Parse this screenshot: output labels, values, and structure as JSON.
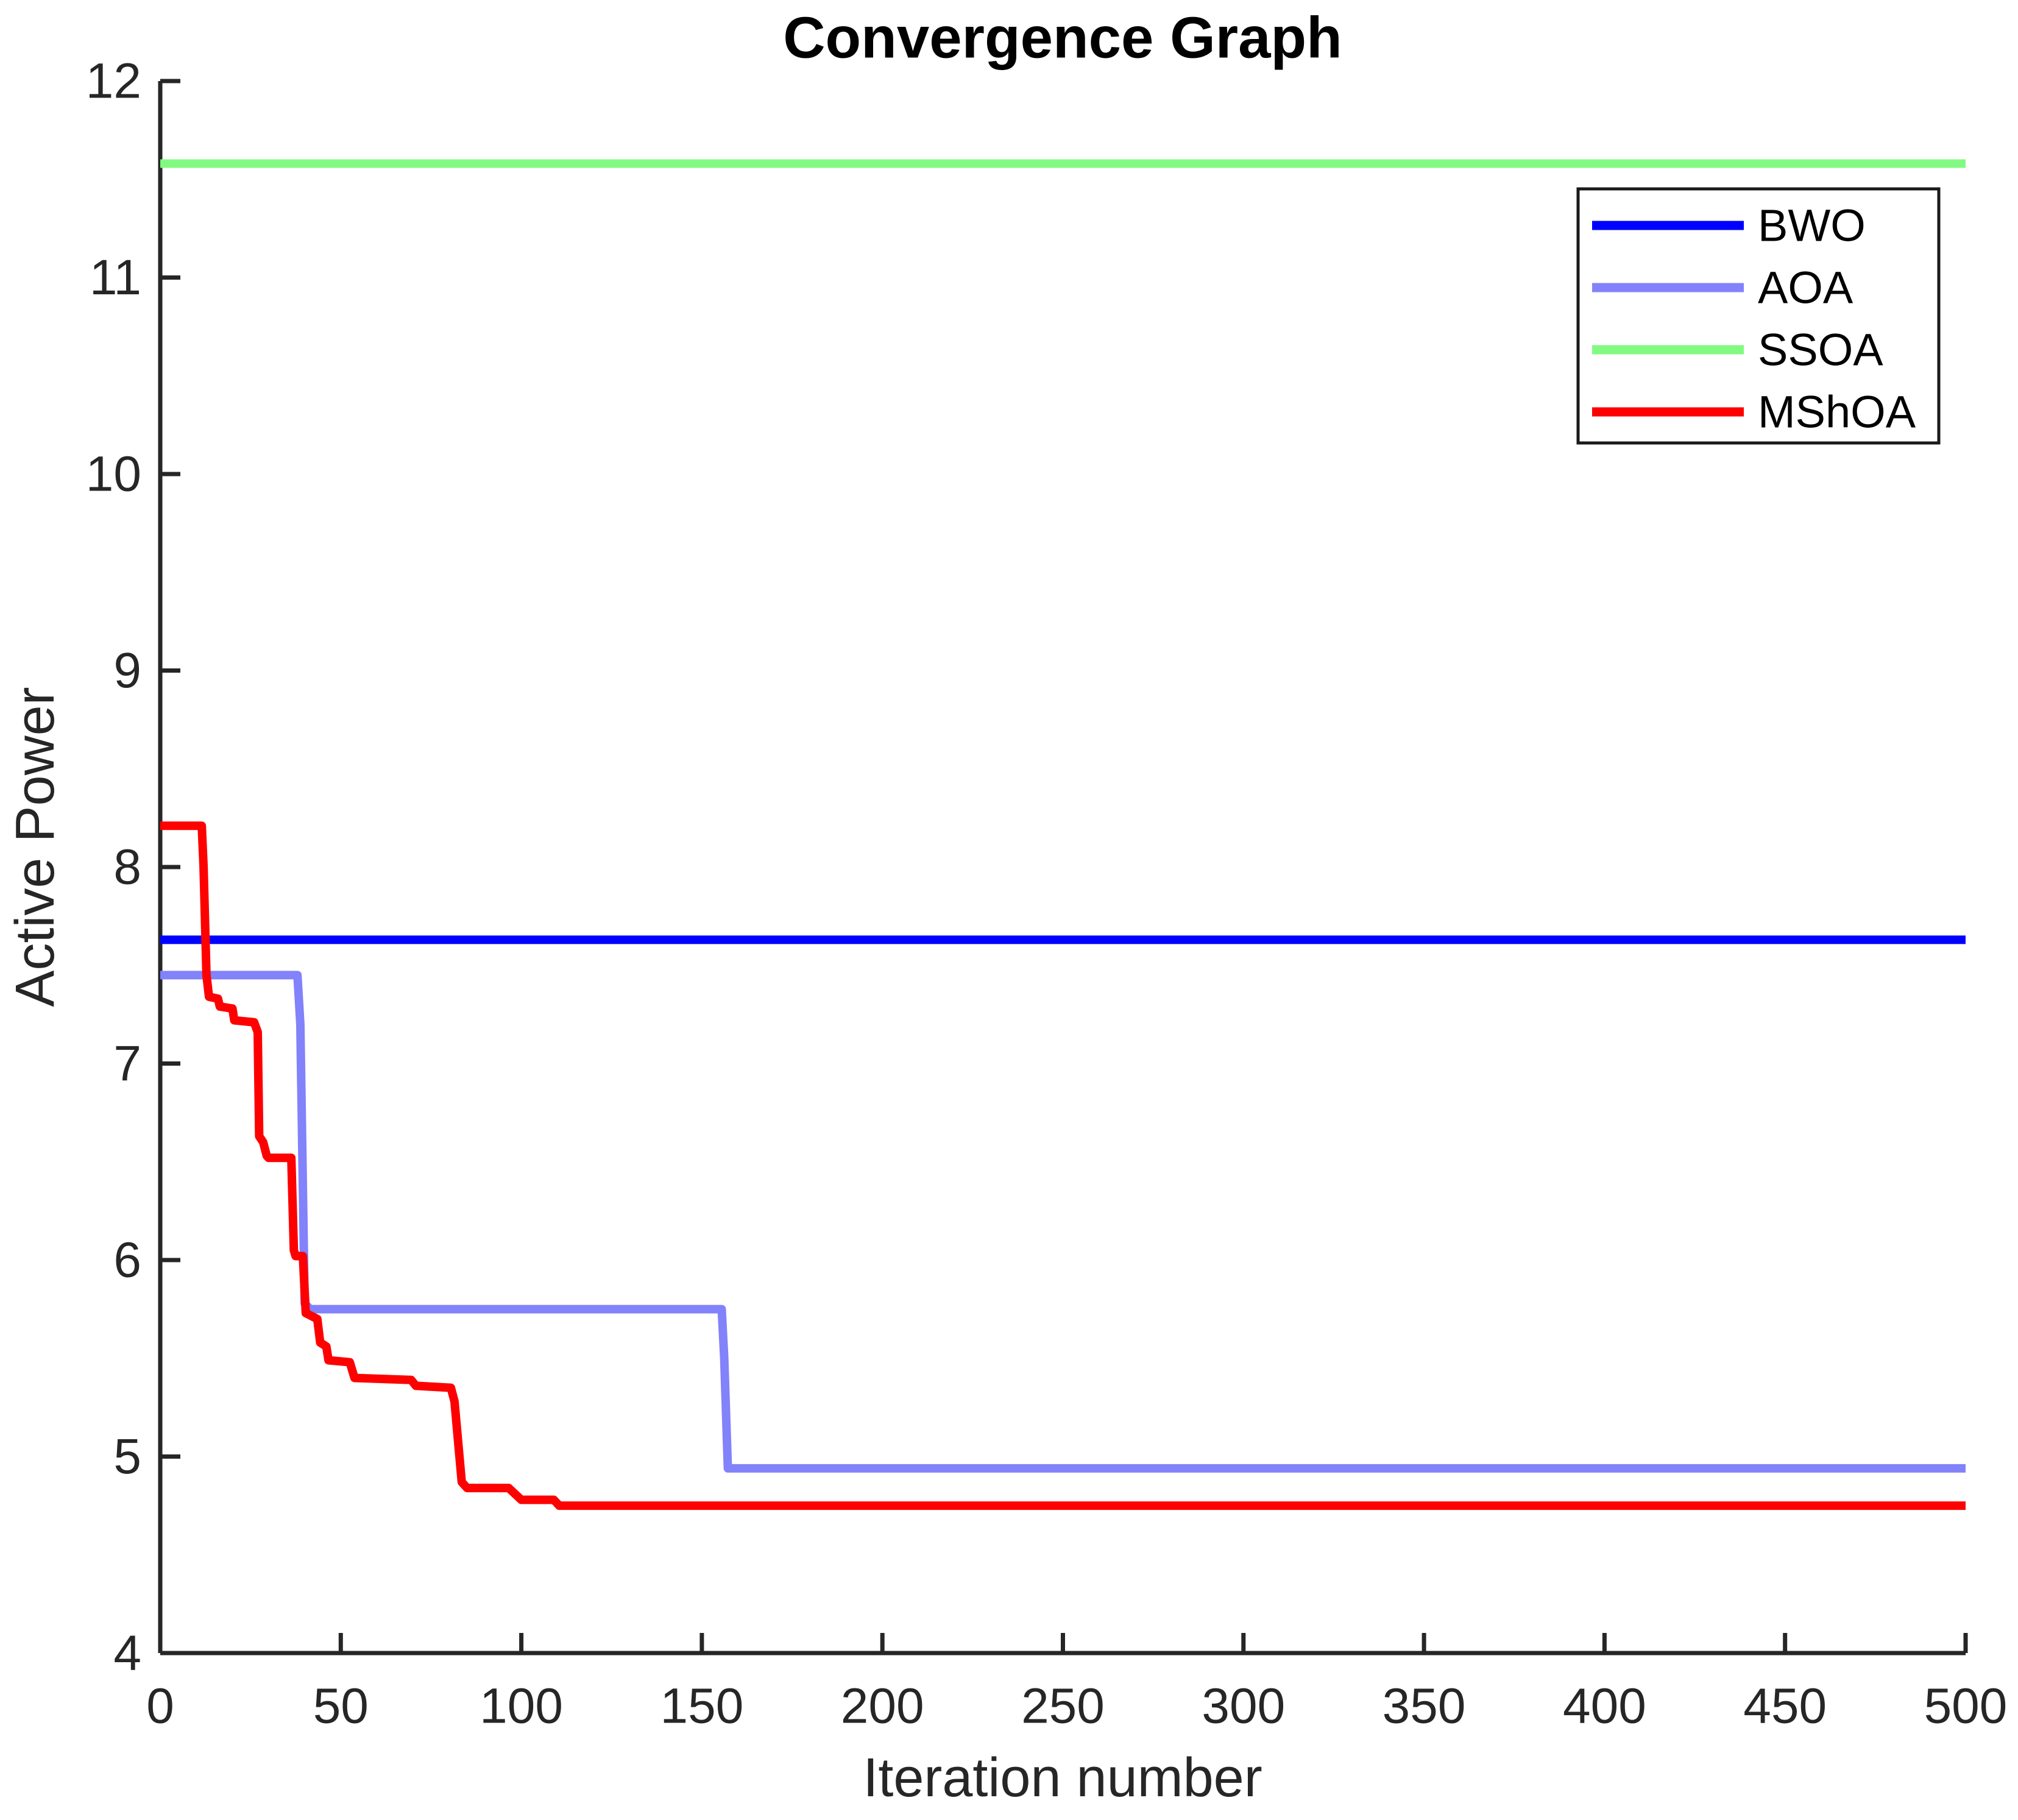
{
  "chart_data": {
    "type": "line",
    "title": "Convergence Graph",
    "xlabel": "Iteration number",
    "ylabel": "Active Power",
    "xlim": [
      0,
      500
    ],
    "ylim": [
      4,
      12
    ],
    "xticks": [
      0,
      50,
      100,
      150,
      200,
      250,
      300,
      350,
      400,
      450,
      500
    ],
    "yticks": [
      4,
      5,
      6,
      7,
      8,
      9,
      10,
      11,
      12
    ],
    "grid": false,
    "legend_position": "top-right",
    "axis_color": "#262626",
    "series": [
      {
        "name": "BWO",
        "color": "#0000FE",
        "points": [
          [
            0,
            7.63
          ],
          [
            500,
            7.63
          ]
        ]
      },
      {
        "name": "AOA",
        "color": "#8282FB",
        "points": [
          [
            0,
            7.45
          ],
          [
            38,
            7.45
          ],
          [
            38.8,
            7.2
          ],
          [
            40,
            5.78
          ],
          [
            41.5,
            5.75
          ],
          [
            155.5,
            5.75
          ],
          [
            156.2,
            5.5
          ],
          [
            157.2,
            4.94
          ],
          [
            500,
            4.94
          ]
        ]
      },
      {
        "name": "SSOA",
        "color": "#82FA82",
        "points": [
          [
            0,
            11.58
          ],
          [
            500,
            11.58
          ]
        ]
      },
      {
        "name": "MShOA",
        "color": "#FE0000",
        "points": [
          [
            0,
            8.21
          ],
          [
            11.5,
            8.21
          ],
          [
            12,
            8.0
          ],
          [
            12.8,
            7.45
          ],
          [
            13.5,
            7.34
          ],
          [
            16,
            7.33
          ],
          [
            16.5,
            7.29
          ],
          [
            20,
            7.28
          ],
          [
            20.5,
            7.22
          ],
          [
            26,
            7.21
          ],
          [
            27,
            7.16
          ],
          [
            27.4,
            6.63
          ],
          [
            28.5,
            6.6
          ],
          [
            29.5,
            6.53
          ],
          [
            30,
            6.52
          ],
          [
            36.3,
            6.52
          ],
          [
            37,
            6.05
          ],
          [
            37.5,
            6.02
          ],
          [
            39.5,
            6.02
          ],
          [
            40.3,
            5.73
          ],
          [
            43.5,
            5.7
          ],
          [
            44.3,
            5.58
          ],
          [
            46,
            5.56
          ],
          [
            46.6,
            5.49
          ],
          [
            52.5,
            5.48
          ],
          [
            53.8,
            5.4
          ],
          [
            69.5,
            5.39
          ],
          [
            70.8,
            5.36
          ],
          [
            80.5,
            5.35
          ],
          [
            81.5,
            5.28
          ],
          [
            83.5,
            4.87
          ],
          [
            85,
            4.84
          ],
          [
            96.5,
            4.84
          ],
          [
            100,
            4.78
          ],
          [
            109,
            4.78
          ],
          [
            110.5,
            4.75
          ],
          [
            500,
            4.75
          ]
        ]
      }
    ]
  }
}
